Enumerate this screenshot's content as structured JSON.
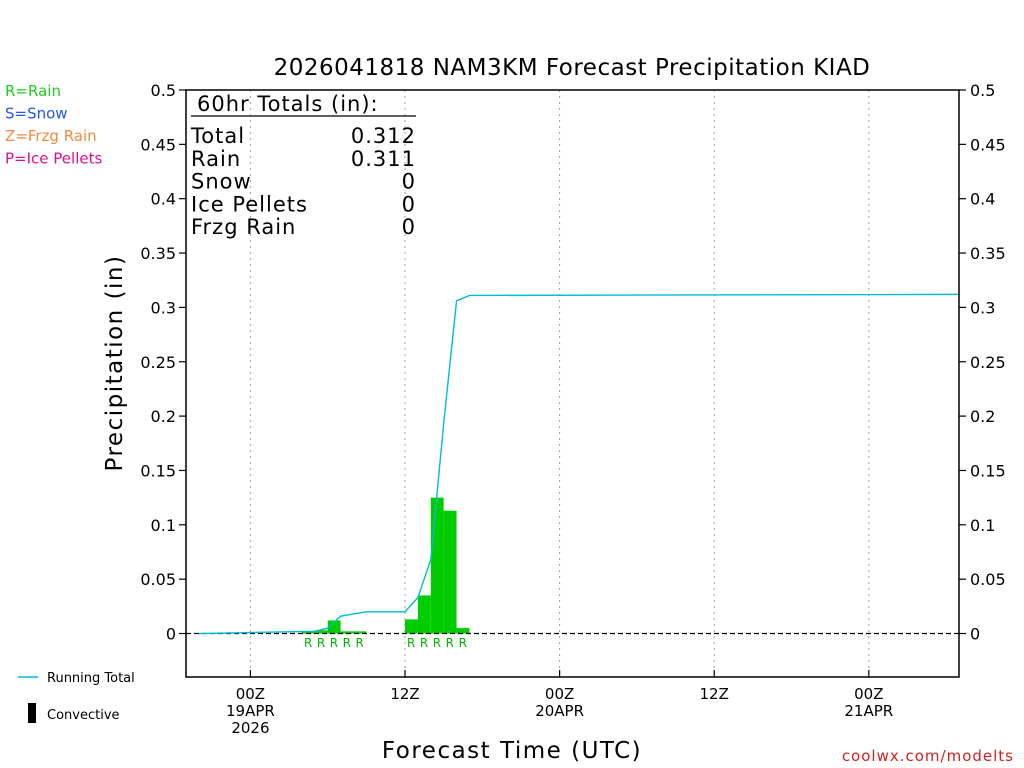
{
  "colors": {
    "rain": "#00cc00",
    "snow": "#2255ee",
    "frzg_rain": "#f08030",
    "ice_pellets": "#e0108a",
    "running_total": "#00bcd4",
    "convective": "#000000",
    "credit": "#d22020"
  },
  "ptype_legend": [
    {
      "label": "R=Rain",
      "color": "#22cc22"
    },
    {
      "label": "S=Snow",
      "color": "#2255ee"
    },
    {
      "label": "Z=Frzg Rain",
      "color": "#f08a40"
    },
    {
      "label": "P=Ice Pellets",
      "color": "#e0108a"
    }
  ],
  "series_legend": {
    "running_total": "Running Total",
    "convective": "Convective"
  },
  "totals_box": {
    "heading": "60hr Totals (in):",
    "rows": [
      {
        "label": "Total",
        "value": "0.312"
      },
      {
        "label": "Rain",
        "value": "0.311"
      },
      {
        "label": "Snow",
        "value": "0"
      },
      {
        "label": "Ice Pellets",
        "value": "0"
      },
      {
        "label": "Frzg Rain",
        "value": "0"
      }
    ]
  },
  "credit": "coolwx.com/modelts",
  "chart_data": {
    "type": "bar",
    "title": "2026041818 NAM3KM Forecast Precipitation KIAD",
    "xlabel": "Forecast Time (UTC)",
    "ylabel": "Precipitation (in)",
    "ylim": [
      -0.04,
      0.5
    ],
    "xlim_hours": [
      -5,
      55
    ],
    "yticks": [
      "0.5",
      "0.45",
      "0.4",
      "0.35",
      "0.3",
      "0.25",
      "0.2",
      "0.15",
      "0.1",
      "0.05",
      "0"
    ],
    "ytick_values": [
      0.5,
      0.45,
      0.4,
      0.35,
      0.3,
      0.25,
      0.2,
      0.15,
      0.1,
      0.05,
      0
    ],
    "xticks": [
      {
        "hour": 0,
        "lines": [
          "00Z",
          "19APR",
          "2026"
        ]
      },
      {
        "hour": 12,
        "lines": [
          "12Z"
        ]
      },
      {
        "hour": 24,
        "lines": [
          "00Z",
          "20APR"
        ]
      },
      {
        "hour": 36,
        "lines": [
          "12Z"
        ]
      },
      {
        "hour": 48,
        "lines": [
          "00Z",
          "21APR"
        ]
      }
    ],
    "bar_width_hours": 1,
    "hourly_precip": [
      {
        "hour": 4,
        "value": 0.002
      },
      {
        "hour": 5,
        "value": 0.003
      },
      {
        "hour": 6,
        "value": 0.012
      },
      {
        "hour": 7,
        "value": 0.002
      },
      {
        "hour": 8,
        "value": 0.002
      },
      {
        "hour": 12,
        "value": 0.013
      },
      {
        "hour": 13,
        "value": 0.035
      },
      {
        "hour": 14,
        "value": 0.125
      },
      {
        "hour": 15,
        "value": 0.113
      },
      {
        "hour": 16,
        "value": 0.005
      }
    ],
    "ptype_markers": [
      {
        "hour": 4.5,
        "label": "R"
      },
      {
        "hour": 5.5,
        "label": "R"
      },
      {
        "hour": 6.5,
        "label": "R"
      },
      {
        "hour": 7.5,
        "label": "R"
      },
      {
        "hour": 8.5,
        "label": "R"
      },
      {
        "hour": 12.5,
        "label": "R"
      },
      {
        "hour": 13.5,
        "label": "R"
      },
      {
        "hour": 14.5,
        "label": "R"
      },
      {
        "hour": 15.5,
        "label": "R"
      },
      {
        "hour": 16.5,
        "label": "R"
      }
    ],
    "running_total": {
      "hours": [
        -5,
        5,
        6,
        7,
        8,
        9,
        10,
        11,
        12,
        13,
        14,
        15,
        16,
        17,
        55
      ],
      "values": [
        0,
        0.002,
        0.005,
        0.016,
        0.018,
        0.02,
        0.02,
        0.02,
        0.02,
        0.033,
        0.068,
        0.193,
        0.306,
        0.311,
        0.312
      ]
    }
  }
}
